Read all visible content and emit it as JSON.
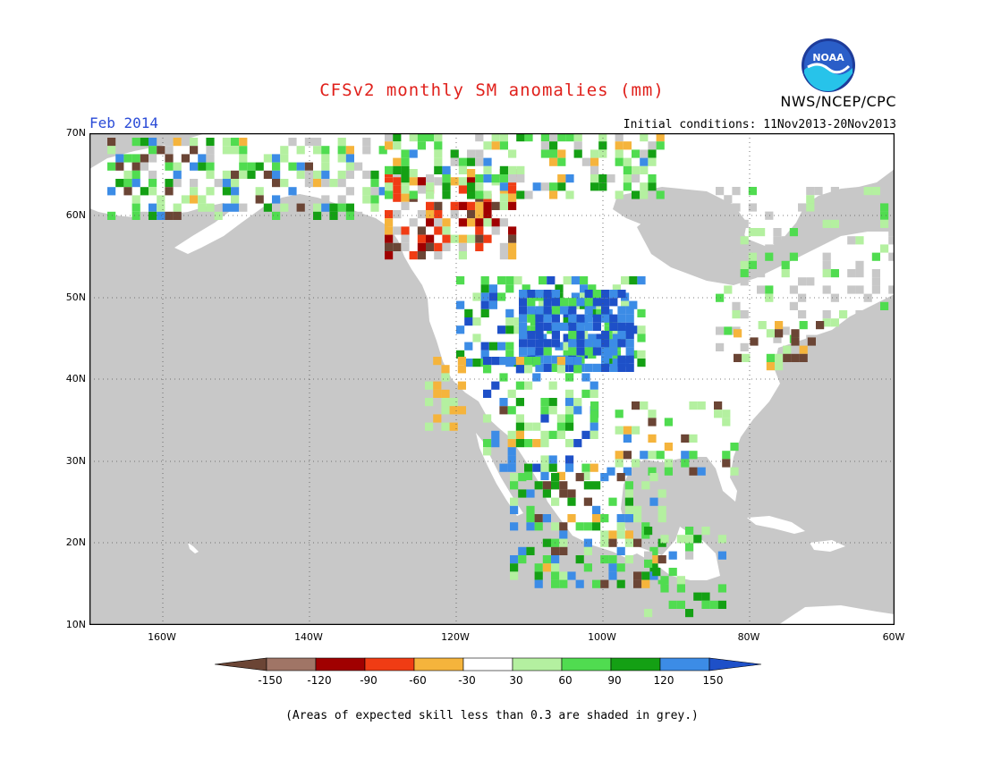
{
  "title": "CFSv2 monthly SM anomalies (mm)",
  "month": "Feb 2014",
  "initial_conditions": "Initial conditions: 11Nov2013-20Nov2013",
  "agency": "NWS/NCEP/CPC",
  "logo_text": "NOAA",
  "footnote": "(Areas of expected skill less than 0.3 are shaded in grey.)",
  "lat_labels": [
    "70N",
    "60N",
    "50N",
    "40N",
    "30N",
    "20N",
    "10N"
  ],
  "lon_labels": [
    "160W",
    "140W",
    "120W",
    "100W",
    "80W",
    "60W"
  ],
  "colorbar": {
    "labels": [
      "-150",
      "-120",
      "-90",
      "-60",
      "-30",
      "30",
      "60",
      "90",
      "120",
      "150"
    ],
    "colors": [
      "#6b4535",
      "#a07566",
      "#a00000",
      "#f03c14",
      "#f5b43c",
      "#ffffff",
      "#b4f0a0",
      "#50dc50",
      "#14a014",
      "#3c8ce6",
      "#1e50c8"
    ]
  },
  "map_colors": {
    "ocean": "#c8c8c8",
    "land": "#ffffff",
    "skill_grey": "#c8c8c8",
    "grid": "#555555"
  }
}
